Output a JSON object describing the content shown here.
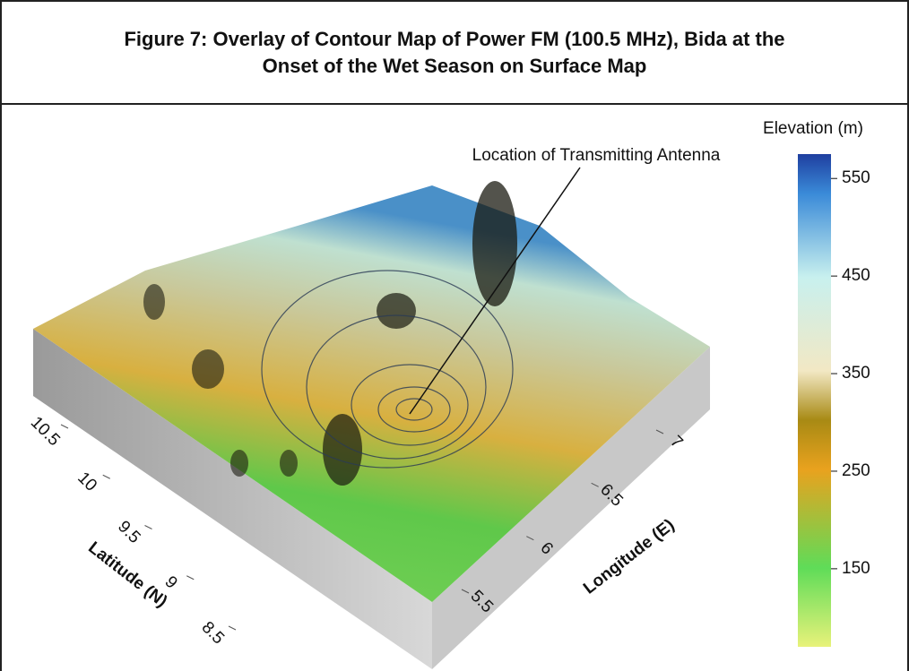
{
  "chart_data": {
    "type": "surface",
    "title": "Figure 7: Overlay of Contour Map of Power FM (100.5 MHz), Bida at the Onset of the Wet Season on Surface Map",
    "annotation": "Location of Transmitting Antenna",
    "x_label": "Longitude (E)",
    "xlim": [
      5.5,
      7.0
    ],
    "xticks": [
      5.5,
      6.0,
      6.5,
      7.0
    ],
    "y_label": "Latitude (N)",
    "ylim": [
      8.5,
      10.5
    ],
    "yticks": [
      8.5,
      9.0,
      9.5,
      10.0,
      10.5
    ],
    "colorbar_label": "Elevation (m)",
    "clim": [
      70,
      575
    ],
    "cticks": [
      150,
      250,
      350,
      450,
      550
    ]
  }
}
